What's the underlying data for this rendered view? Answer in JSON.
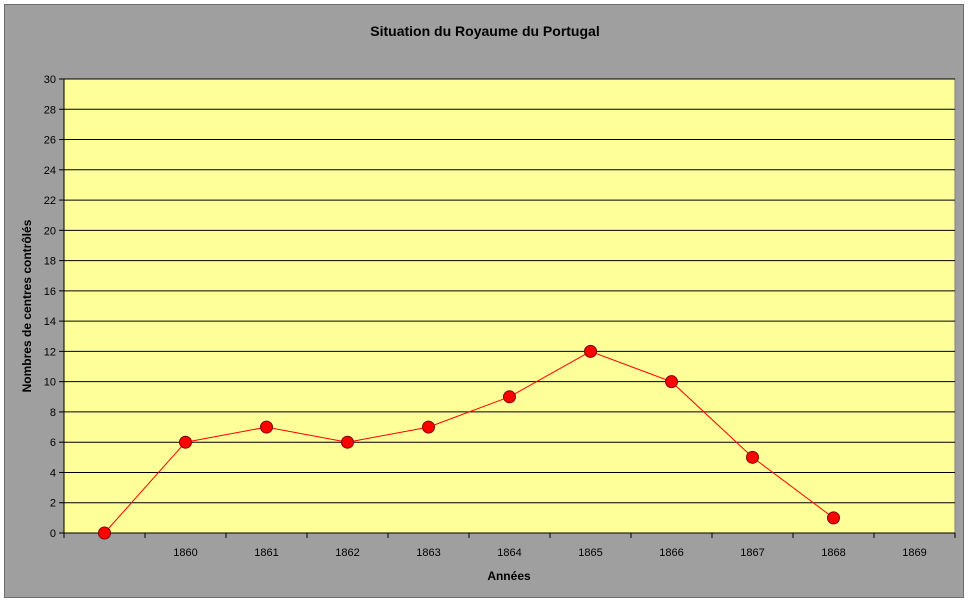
{
  "chart_data": {
    "type": "line",
    "title": "Situation du Royaume du Portugal",
    "xlabel": "Années",
    "ylabel": "Nombres de centres contrôlés",
    "categories": [
      "",
      "1860",
      "1861",
      "1862",
      "1863",
      "1864",
      "1865",
      "1866",
      "1867",
      "1868",
      "1869"
    ],
    "series": [
      {
        "values": [
          0,
          6,
          7,
          6,
          7,
          9,
          12,
          10,
          5,
          1,
          null
        ]
      }
    ],
    "ylim": [
      0,
      30
    ],
    "y_ticks": [
      0,
      2,
      4,
      6,
      8,
      10,
      12,
      14,
      16,
      18,
      20,
      22,
      24,
      26,
      28,
      30
    ],
    "grid": true,
    "legend": "none",
    "colors": {
      "plot_background": "#ffff99",
      "chart_background": "#9f9f9f",
      "line": "#ff0000",
      "marker_fill": "#ff0000",
      "marker_stroke": "#7a0000",
      "gridline": "#000000"
    }
  }
}
